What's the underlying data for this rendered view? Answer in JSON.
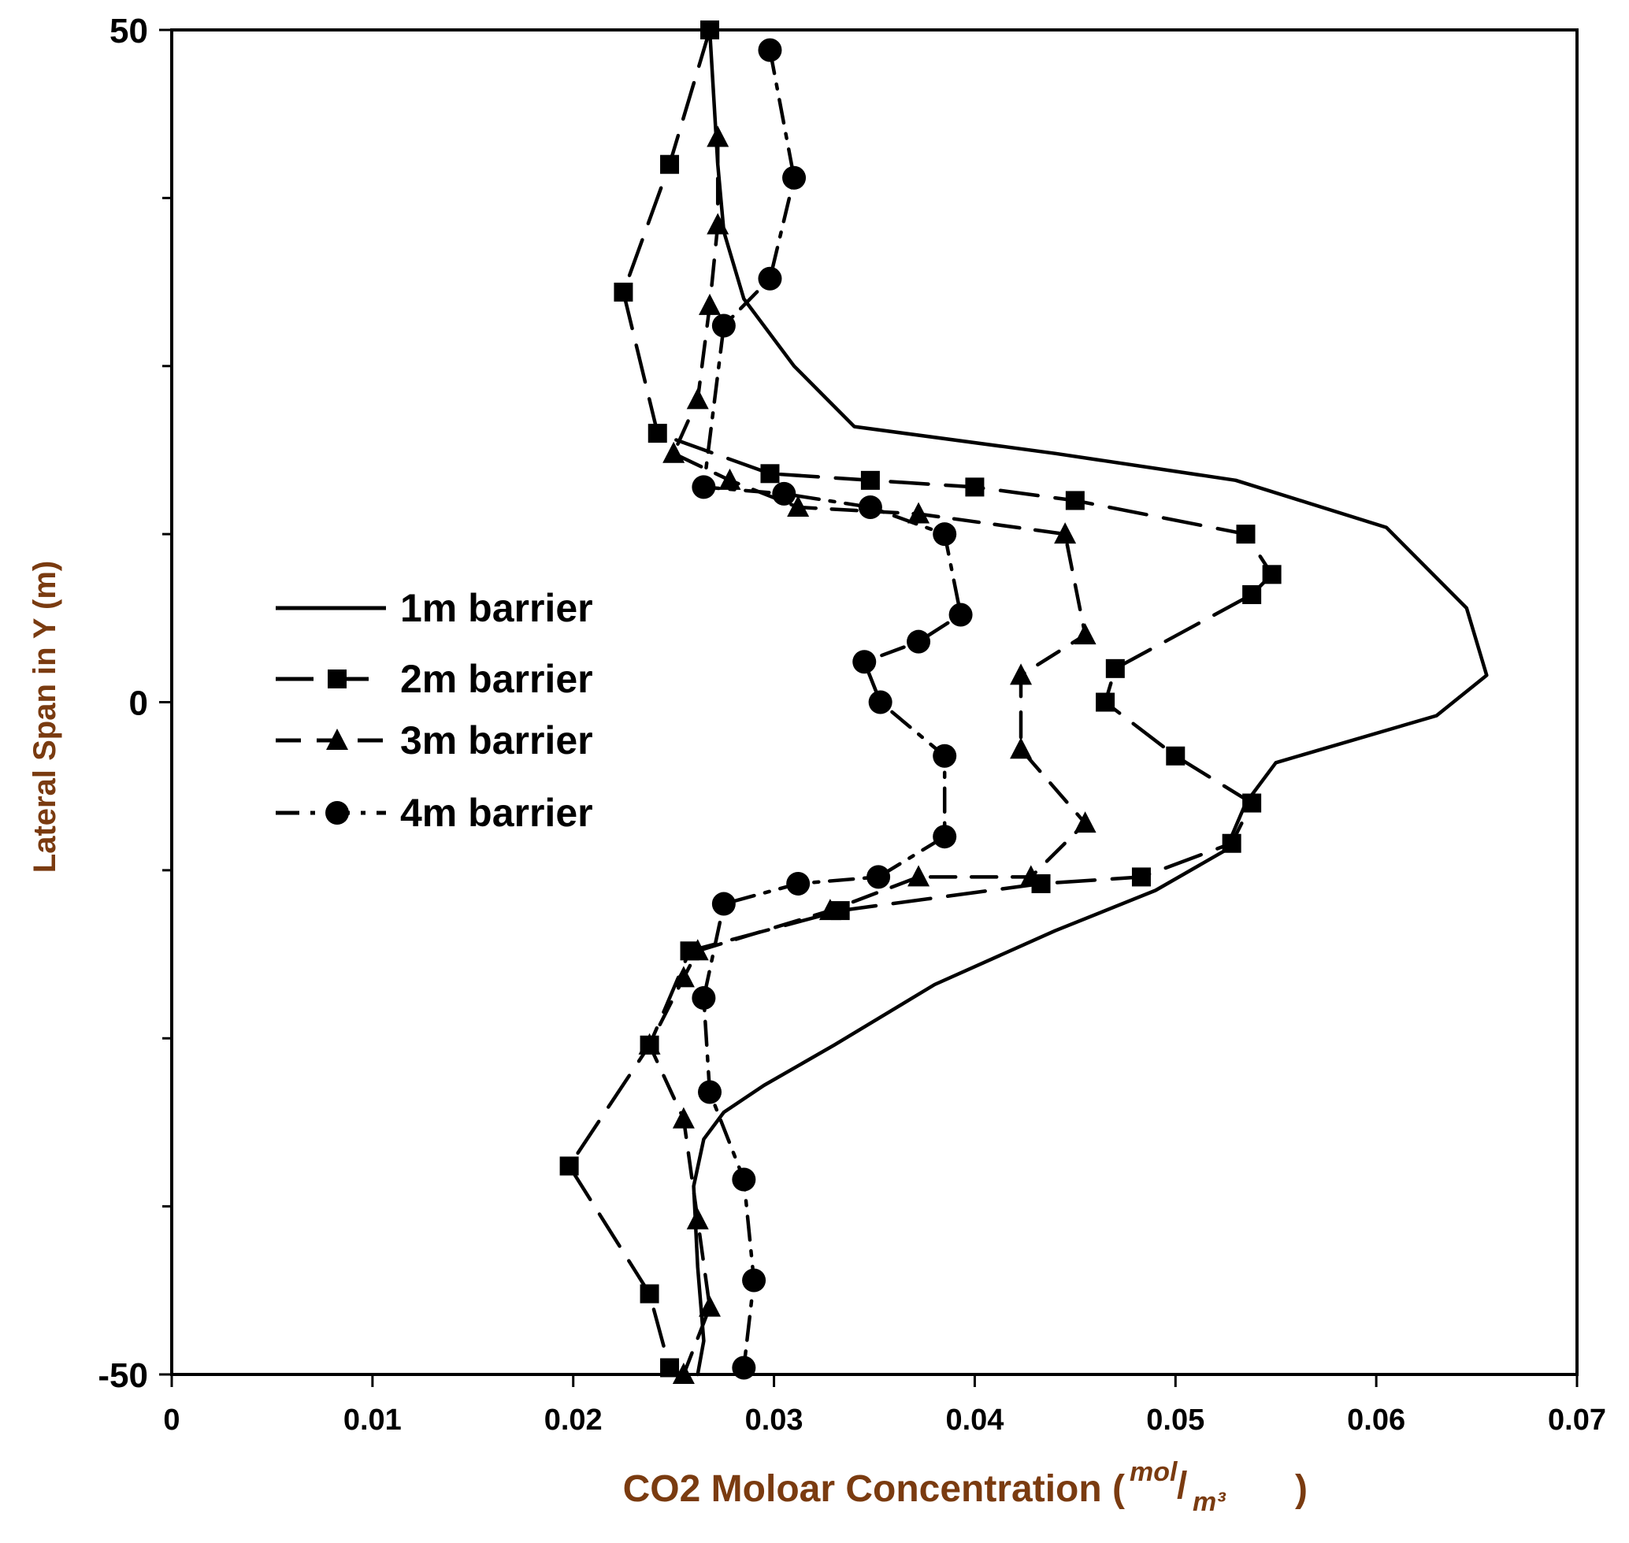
{
  "chart_data": {
    "type": "line",
    "title": "",
    "xlabel": "CO2 Moloar Concentration (",
    "xlabel_unit_num": "mol",
    "xlabel_unit_den": "m³",
    "xlabel_close": ")",
    "ylabel": "Lateral Span in Y (m)",
    "xlim": [
      0,
      0.07
    ],
    "ylim": [
      -50,
      50
    ],
    "x_ticks": [
      "0",
      "0.01",
      "0.02",
      "0.03",
      "0.04",
      "0.05",
      "0.06",
      "0.07"
    ],
    "x_tick_values": [
      0,
      0.01,
      0.02,
      0.03,
      0.04,
      0.05,
      0.06,
      0.07
    ],
    "y_ticks": [
      "-50",
      "0",
      "50"
    ],
    "y_tick_values": [
      -50,
      0,
      50
    ],
    "y_minor_tick_values": [
      -37.5,
      -25,
      -12.5,
      12.5,
      25,
      37.5
    ],
    "grid": false,
    "legend_position": "left-middle",
    "series": [
      {
        "name": "1m barrier",
        "marker": "none",
        "dash": "solid",
        "points": [
          [
            0.0268,
            50
          ],
          [
            0.0272,
            40
          ],
          [
            0.0275,
            35
          ],
          [
            0.0285,
            30
          ],
          [
            0.031,
            25
          ],
          [
            0.034,
            20.5
          ],
          [
            0.044,
            18.5
          ],
          [
            0.053,
            16.5
          ],
          [
            0.0605,
            13
          ],
          [
            0.0645,
            7
          ],
          [
            0.0655,
            2
          ],
          [
            0.063,
            -1
          ],
          [
            0.055,
            -4.5
          ],
          [
            0.0535,
            -7.5
          ],
          [
            0.0525,
            -11
          ],
          [
            0.049,
            -14
          ],
          [
            0.044,
            -17
          ],
          [
            0.038,
            -21
          ],
          [
            0.033,
            -25.5
          ],
          [
            0.0295,
            -28.5
          ],
          [
            0.0275,
            -30.5
          ],
          [
            0.0265,
            -32.5
          ],
          [
            0.026,
            -36
          ],
          [
            0.0262,
            -42
          ],
          [
            0.0265,
            -47.5
          ],
          [
            0.0262,
            -50
          ]
        ]
      },
      {
        "name": "2m barrier",
        "marker": "square",
        "dash": "long",
        "points": [
          [
            0.0268,
            50
          ],
          [
            0.0248,
            40
          ],
          [
            0.0225,
            30.5
          ],
          [
            0.0242,
            20
          ],
          [
            0.0298,
            17
          ],
          [
            0.0348,
            16.5
          ],
          [
            0.04,
            16
          ],
          [
            0.045,
            15
          ],
          [
            0.0535,
            12.5
          ],
          [
            0.0548,
            9.5
          ],
          [
            0.0538,
            8
          ],
          [
            0.047,
            2.5
          ],
          [
            0.0465,
            0
          ],
          [
            0.05,
            -4
          ],
          [
            0.0538,
            -7.5
          ],
          [
            0.0528,
            -10.5
          ],
          [
            0.0483,
            -13
          ],
          [
            0.0433,
            -13.5
          ],
          [
            0.0333,
            -15.5
          ],
          [
            0.0258,
            -18.5
          ],
          [
            0.0238,
            -25.5
          ],
          [
            0.0198,
            -34.5
          ],
          [
            0.0238,
            -44
          ],
          [
            0.0248,
            -49.5
          ]
        ]
      },
      {
        "name": "3m barrier",
        "marker": "triangle",
        "dash": "dash",
        "points": [
          [
            0.0272,
            42
          ],
          [
            0.0272,
            35.5
          ],
          [
            0.0268,
            29.5
          ],
          [
            0.0262,
            22.5
          ],
          [
            0.025,
            18.5
          ],
          [
            0.0278,
            16.5
          ],
          [
            0.0312,
            14.5
          ],
          [
            0.0372,
            14
          ],
          [
            0.0445,
            12.5
          ],
          [
            0.0455,
            5
          ],
          [
            0.0423,
            2
          ],
          [
            0.0423,
            -3.5
          ],
          [
            0.0455,
            -9
          ],
          [
            0.0428,
            -13
          ],
          [
            0.0372,
            -13
          ],
          [
            0.0328,
            -15.5
          ],
          [
            0.0262,
            -18.5
          ],
          [
            0.0255,
            -20.5
          ],
          [
            0.0238,
            -25.5
          ],
          [
            0.0255,
            -31
          ],
          [
            0.0262,
            -38.5
          ],
          [
            0.0268,
            -45
          ],
          [
            0.0255,
            -50
          ]
        ]
      },
      {
        "name": "4m barrier",
        "marker": "circle",
        "dash": "dashdot",
        "points": [
          [
            0.0298,
            48.5
          ],
          [
            0.031,
            39
          ],
          [
            0.0298,
            31.5
          ],
          [
            0.0275,
            28
          ],
          [
            0.0265,
            16
          ],
          [
            0.0305,
            15.5
          ],
          [
            0.0348,
            14.5
          ],
          [
            0.0385,
            12.5
          ],
          [
            0.0393,
            6.5
          ],
          [
            0.0372,
            4.5
          ],
          [
            0.0345,
            3
          ],
          [
            0.0353,
            0
          ],
          [
            0.0385,
            -4
          ],
          [
            0.0385,
            -10
          ],
          [
            0.0352,
            -13
          ],
          [
            0.0312,
            -13.5
          ],
          [
            0.0275,
            -15
          ],
          [
            0.0265,
            -22
          ],
          [
            0.0268,
            -29
          ],
          [
            0.0285,
            -35.5
          ],
          [
            0.029,
            -43
          ],
          [
            0.0285,
            -49.5
          ]
        ]
      }
    ]
  }
}
